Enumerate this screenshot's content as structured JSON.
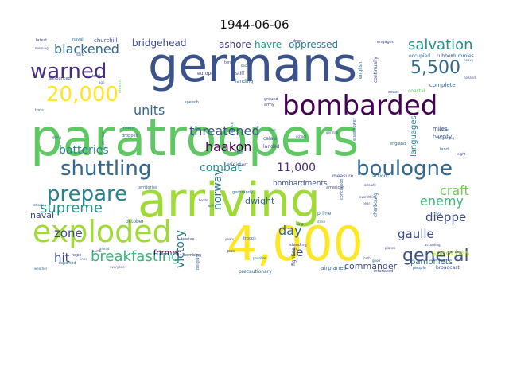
{
  "title": "1944-06-06",
  "words": [
    {
      "text": "paratroopers",
      "color": "#5ec962"
    },
    {
      "text": "germans",
      "color": "#3b528b"
    },
    {
      "text": "arriving",
      "color": "#a0da39"
    },
    {
      "text": "4,000",
      "color": "#fde725"
    },
    {
      "text": "bombarded",
      "color": "#440154"
    },
    {
      "text": "exploded",
      "color": "#a0da39"
    },
    {
      "text": "boulogne",
      "color": "#31688e"
    },
    {
      "text": "shuttling",
      "color": "#31688e"
    },
    {
      "text": "prepare",
      "color": "#26828e"
    },
    {
      "text": "20,000",
      "color": "#fde725"
    },
    {
      "text": "warned",
      "color": "#472d7b"
    },
    {
      "text": "5,500",
      "color": "#31688e"
    },
    {
      "text": "general",
      "color": "#3b528b"
    },
    {
      "text": "breakfasting",
      "color": "#35b779"
    },
    {
      "text": "supreme",
      "color": "#21918c"
    },
    {
      "text": "threatened",
      "color": "#3b528b"
    },
    {
      "text": "haakon",
      "color": "#440154"
    },
    {
      "text": "salvation",
      "color": "#21918c"
    },
    {
      "text": "blackened",
      "color": "#31688e"
    },
    {
      "text": "units",
      "color": "#31688e"
    },
    {
      "text": "batteries",
      "color": "#26828e"
    },
    {
      "text": "combat",
      "color": "#21918c"
    },
    {
      "text": "11,000",
      "color": "#472d7b"
    },
    {
      "text": "craft",
      "color": "#6ece58"
    },
    {
      "text": "enemy",
      "color": "#35b779"
    },
    {
      "text": "dieppe",
      "color": "#3e4989"
    },
    {
      "text": "gaulle",
      "color": "#3e4989"
    },
    {
      "text": "zone",
      "color": "#3e4989"
    },
    {
      "text": "hit",
      "color": "#3e4989"
    },
    {
      "text": "day",
      "color": "#31688e"
    },
    {
      "text": "le",
      "color": "#3e4989"
    },
    {
      "text": "commander",
      "color": "#3e4989"
    },
    {
      "text": "bridgehead",
      "color": "#3e4989"
    },
    {
      "text": "ashore",
      "color": "#443983"
    },
    {
      "text": "havre",
      "color": "#1f9e89"
    },
    {
      "text": "oppressed",
      "color": "#26828e"
    },
    {
      "text": "victory",
      "color": "#2a788e"
    },
    {
      "text": "norway",
      "color": "#2a788e"
    },
    {
      "text": "dwight",
      "color": "#31688e"
    },
    {
      "text": "naval",
      "color": "#3e4989"
    },
    {
      "text": "formed",
      "color": "#440154"
    },
    {
      "text": "languages",
      "color": "#26828e"
    },
    {
      "text": "pamphlets",
      "color": "#31688e"
    },
    {
      "text": "speeches",
      "color": "#b5de2b"
    },
    {
      "text": "bombardments",
      "color": "#3b528b"
    },
    {
      "text": "airplanes",
      "color": "#31688e"
    },
    {
      "text": "churchill",
      "color": "#3e4989"
    },
    {
      "text": "october",
      "color": "#31688e"
    },
    {
      "text": "broadcast",
      "color": "#3e4989"
    },
    {
      "text": "measure",
      "color": "#3e4989"
    },
    {
      "text": "action",
      "color": "#31688e"
    },
    {
      "text": "miles",
      "color": "#3e4989"
    },
    {
      "text": "twenty",
      "color": "#31688e"
    },
    {
      "text": "complete",
      "color": "#31688e"
    },
    {
      "text": "coastal",
      "color": "#5ec962"
    },
    {
      "text": "occupied",
      "color": "#31688e"
    },
    {
      "text": "rubber",
      "color": "#3e4989"
    },
    {
      "text": "dummies",
      "color": "#31688e"
    },
    {
      "text": "precautionary",
      "color": "#31688e"
    },
    {
      "text": "means",
      "color": "#31688e"
    },
    {
      "text": "dropped",
      "color": "#31688e"
    },
    {
      "text": "territories",
      "color": "#31688e"
    },
    {
      "text": "landed",
      "color": "#3e4989"
    },
    {
      "text": "calais",
      "color": "#31688e"
    },
    {
      "text": "minister",
      "color": "#3e4989"
    },
    {
      "text": "gerbrandy",
      "color": "#31688e"
    },
    {
      "text": "troops",
      "color": "#31688e"
    },
    {
      "text": "eleven",
      "color": "#5ec962"
    },
    {
      "text": "europe",
      "color": "#3e4989"
    },
    {
      "text": "landing",
      "color": "#31688e"
    },
    {
      "text": "stiff",
      "color": "#3e4989"
    },
    {
      "text": "english",
      "color": "#31688e"
    },
    {
      "text": "continually",
      "color": "#3e4989"
    },
    {
      "text": "announced",
      "color": "#3e4989"
    },
    {
      "text": "trial",
      "color": "#3e4989"
    },
    {
      "text": "american",
      "color": "#3e4989"
    },
    {
      "text": "england",
      "color": "#31688e"
    },
    {
      "text": "engaged",
      "color": "#3e4989"
    },
    {
      "text": "drop",
      "color": "#3e4989"
    },
    {
      "text": "coast",
      "color": "#31688e"
    },
    {
      "text": "speech",
      "color": "#31688e"
    },
    {
      "text": "army",
      "color": "#3e4989"
    },
    {
      "text": "ground",
      "color": "#3e4989"
    },
    {
      "text": "school",
      "color": "#3e4989"
    },
    {
      "text": "france",
      "color": "#31688e"
    },
    {
      "text": "twelve",
      "color": "#3e4989"
    },
    {
      "text": "belgium",
      "color": "#31688e"
    },
    {
      "text": "bombing",
      "color": "#3e4989"
    },
    {
      "text": "hope",
      "color": "#3e4989"
    },
    {
      "text": "reported",
      "color": "#31688e"
    },
    {
      "text": "fighting",
      "color": "#3e4989"
    },
    {
      "text": "standing",
      "color": "#3e4989"
    },
    {
      "text": "prime",
      "color": "#31688e"
    },
    {
      "text": "cherbourg",
      "color": "#31688e"
    },
    {
      "text": "infuriated",
      "color": "#3e4989"
    },
    {
      "text": "people",
      "color": "#31688e"
    },
    {
      "text": "latest",
      "color": "#3e4989"
    },
    {
      "text": "naval",
      "color": "#31688e"
    },
    {
      "text": "ten",
      "color": "#3e4989"
    },
    {
      "text": "back",
      "color": "#31688e"
    },
    {
      "text": "pas",
      "color": "#3e4989"
    },
    {
      "text": "possible",
      "color": "#31688e"
    },
    {
      "text": "everyone",
      "color": "#3e4989"
    },
    {
      "text": "september",
      "color": "#31688e"
    },
    {
      "text": "years",
      "color": "#3e4989"
    },
    {
      "text": "ago",
      "color": "#31688e"
    },
    {
      "text": "first",
      "color": "#3e4989"
    },
    {
      "text": "kind",
      "color": "#31688e"
    },
    {
      "text": "king",
      "color": "#3e4989"
    },
    {
      "text": "well",
      "color": "#31688e"
    },
    {
      "text": "boats",
      "color": "#3e4989"
    },
    {
      "text": "tons",
      "color": "#31688e"
    },
    {
      "text": "morning",
      "color": "#3e4989"
    },
    {
      "text": "going",
      "color": "#31688e"
    },
    {
      "text": "dark",
      "color": "#3e4989"
    },
    {
      "text": "land",
      "color": "#31688e"
    },
    {
      "text": "eight",
      "color": "#3e4989"
    },
    {
      "text": "behind",
      "color": "#31688e"
    },
    {
      "text": "beginning",
      "color": "#3e4989"
    },
    {
      "text": "attack",
      "color": "#31688e"
    },
    {
      "text": "planes",
      "color": "#3e4989"
    },
    {
      "text": "good",
      "color": "#31688e"
    },
    {
      "text": "forth",
      "color": "#3e4989"
    },
    {
      "text": "strike",
      "color": "#31688e"
    },
    {
      "text": "already",
      "color": "#3e4989"
    },
    {
      "text": "heavy",
      "color": "#31688e"
    },
    {
      "text": "holland",
      "color": "#3e4989"
    },
    {
      "text": "ahead",
      "color": "#31688e"
    },
    {
      "text": "bomb",
      "color": "#3e4989"
    },
    {
      "text": "lines",
      "color": "#31688e"
    },
    {
      "text": "german",
      "color": "#3e4989"
    },
    {
      "text": "eisenhower",
      "color": "#31688e"
    },
    {
      "text": "everything",
      "color": "#3e4989"
    },
    {
      "text": "conclusion",
      "color": "#31688e"
    },
    {
      "text": "near",
      "color": "#3e4989"
    },
    {
      "text": "1066",
      "color": "#31688e"
    },
    {
      "text": "according",
      "color": "#3e4989"
    },
    {
      "text": "weather",
      "color": "#31688e"
    }
  ]
}
